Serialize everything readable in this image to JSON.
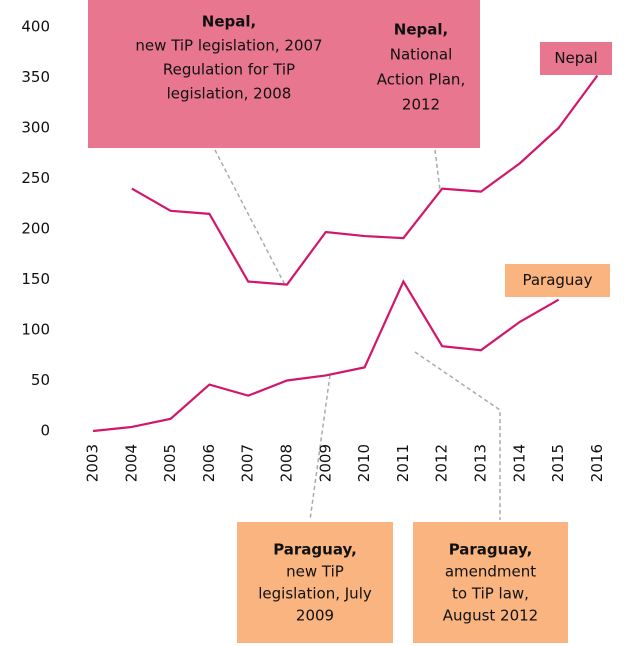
{
  "chart_data": {
    "type": "line",
    "categories": [
      "2003",
      "2004",
      "2005",
      "2006",
      "2007",
      "2008",
      "2009",
      "2010",
      "2011",
      "2012",
      "2013",
      "2014",
      "2015",
      "2016"
    ],
    "series": [
      {
        "name": "Nepal",
        "color": "#d1176b",
        "label_color": "#e8768f",
        "values": [
          null,
          240,
          218,
          215,
          148,
          145,
          197,
          193,
          191,
          240,
          237,
          265,
          300,
          352
        ]
      },
      {
        "name": "Paraguay",
        "color": "#d1176b",
        "label_color": "#f9b47f",
        "values": [
          0,
          4,
          12,
          46,
          35,
          50,
          55,
          63,
          148,
          84,
          80,
          108,
          130,
          null
        ]
      }
    ],
    "ylim": [
      0,
      400
    ],
    "yticks": [
      0,
      50,
      100,
      150,
      200,
      250,
      300,
      350,
      400
    ],
    "grid": false,
    "annotations": [
      {
        "title": "Nepal,",
        "lines": [
          "new TiP legislation, 2007",
          "Regulation for TiP",
          "legislation, 2008"
        ],
        "color": "#e8768f"
      },
      {
        "title": "Nepal,",
        "lines": [
          "National",
          "Action Plan,",
          "2012"
        ],
        "color": "#e8768f"
      },
      {
        "title": "Paraguay,",
        "lines": [
          "new TiP",
          "legislation, July",
          "2009"
        ],
        "color": "#f9b47f"
      },
      {
        "title": "Paraguay,",
        "lines": [
          "amendment",
          "to TiP law,",
          "August 2012"
        ],
        "color": "#f9b47f"
      }
    ]
  }
}
